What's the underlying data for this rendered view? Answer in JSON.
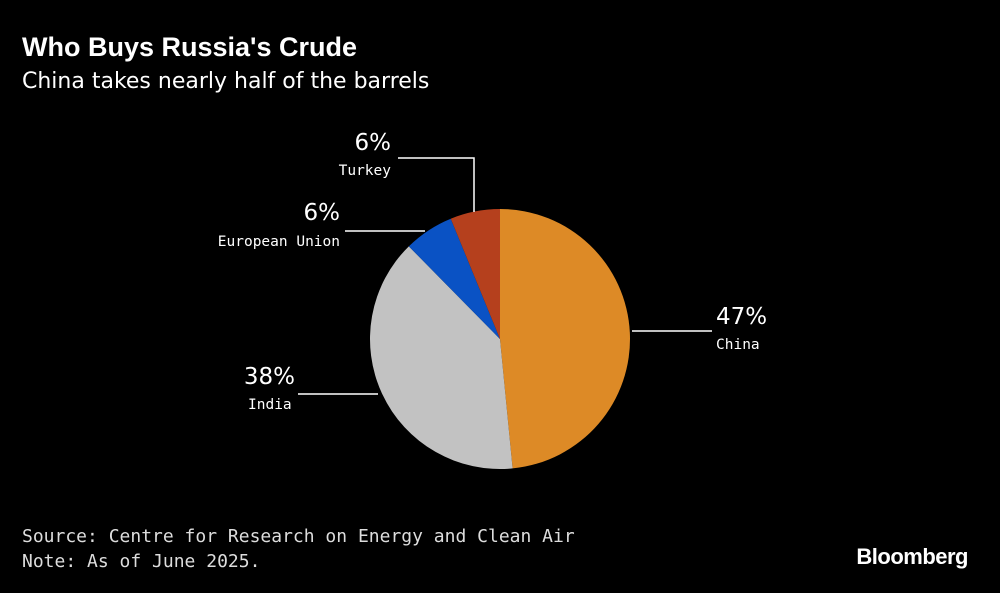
{
  "chart_data": {
    "type": "pie",
    "title": "Who Buys Russia's Crude",
    "subtitle": "China takes nearly half of the barrels",
    "slices": [
      {
        "label": "China",
        "value": 47,
        "value_label": "47%",
        "color": "#dd8a26"
      },
      {
        "label": "India",
        "value": 38,
        "value_label": "38%",
        "color": "#c2c2c2"
      },
      {
        "label": "European Union",
        "value": 6,
        "value_label": "6%",
        "color": "#0a52c4"
      },
      {
        "label": "Turkey",
        "value": 6,
        "value_label": "6%",
        "color": "#b5401d"
      }
    ]
  },
  "footer": {
    "source": "Source: Centre for Research on Energy and Clean Air",
    "note": "Note: As of June 2025.",
    "logo": "Bloomberg"
  }
}
